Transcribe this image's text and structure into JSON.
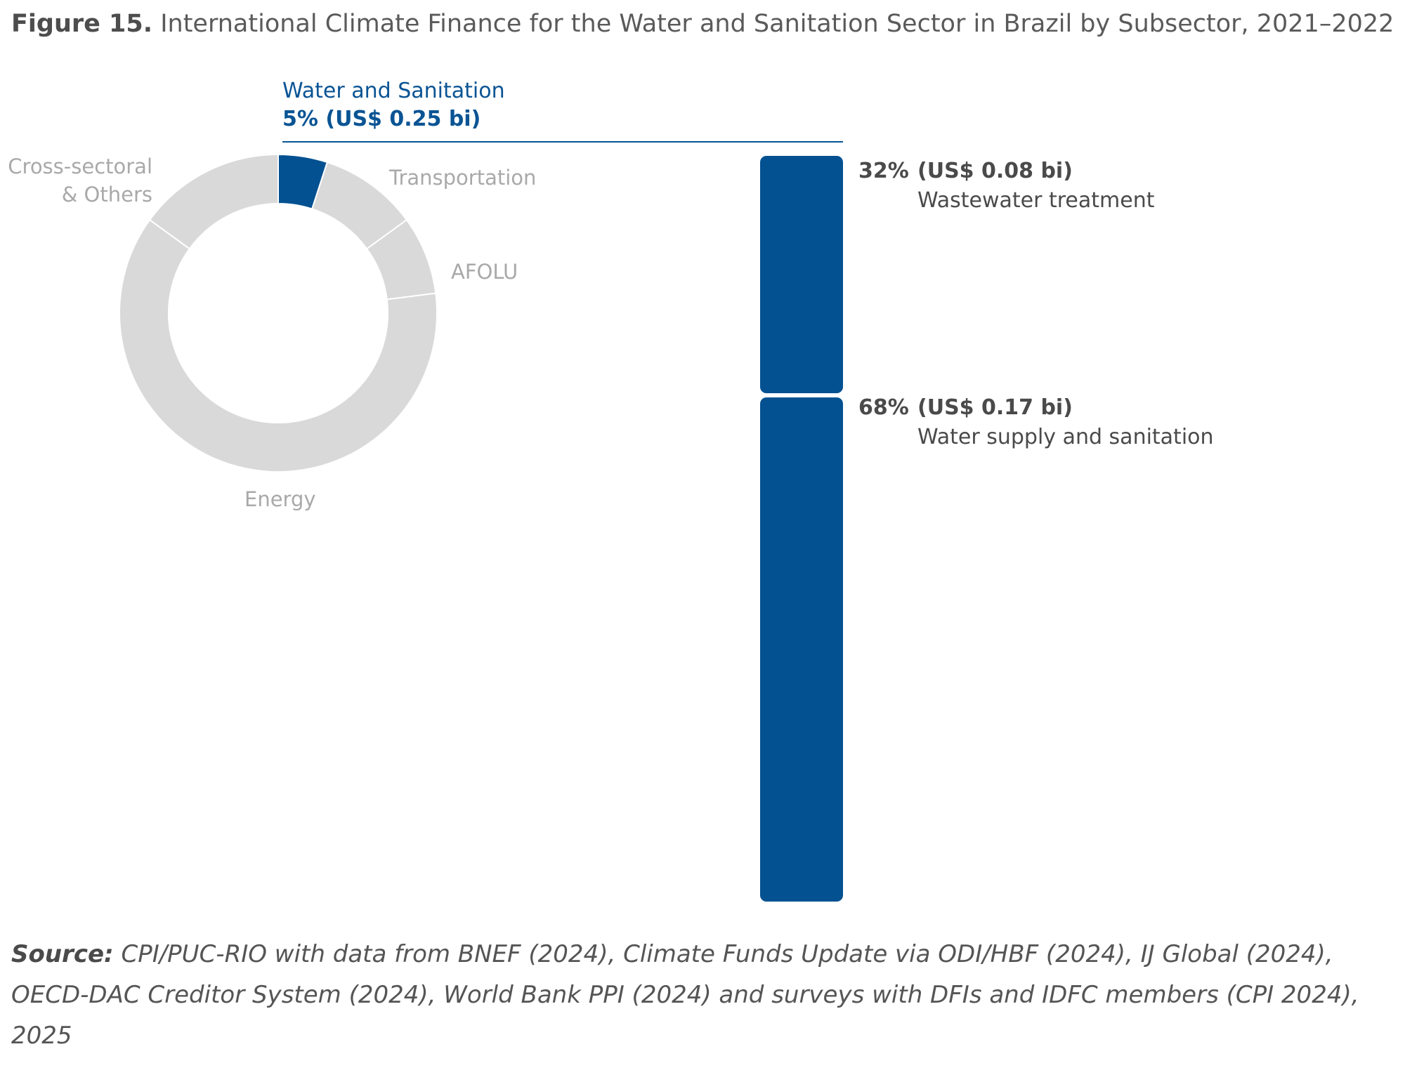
{
  "figure": {
    "label": "Figure 15.",
    "title": "International Climate Finance for the Water and Sanitation Sector in Brazil by Subsector, 2021–2022"
  },
  "colors": {
    "highlight": "#035191",
    "muted": "#d9d9d9",
    "muted_text": "#a9a9a9",
    "callout_text": "#0a5494"
  },
  "chart_data": [
    {
      "type": "pie",
      "variant": "donut",
      "slices": [
        {
          "label": "Water and Sanitation",
          "share_pct": 5,
          "highlight": true
        },
        {
          "label": "Transportation",
          "share_pct": 10
        },
        {
          "label": "AFOLU",
          "share_pct": 8
        },
        {
          "label": "Energy",
          "share_pct": 62
        },
        {
          "label": "Cross-sectoral & Others",
          "share_pct": 15
        }
      ],
      "labels": {
        "cross_line1": "Cross-sectoral",
        "cross_line2": "& Others",
        "transportation": "Transportation",
        "afolu": "AFOLU",
        "energy": "Energy"
      },
      "callout": {
        "name": "Water and Sanitation",
        "value": "5% (US$ 0.25 bi)"
      }
    },
    {
      "type": "bar",
      "variant": "stacked-100",
      "series": [
        {
          "name": "Wastewater treatment",
          "share_pct": 32,
          "value_label": "(US$ 0.08 bi)",
          "pct_label": "32%"
        },
        {
          "name": "Water supply and sanitation",
          "share_pct": 68,
          "value_label": "(US$ 0.17 bi)",
          "pct_label": "68%"
        }
      ]
    }
  ],
  "source": {
    "label": "Source:",
    "text": " CPI/PUC-RIO with data from BNEF (2024), Climate Funds Update via ODI/HBF (2024), IJ Global (2024), OECD-DAC Creditor System (2024), World Bank PPI (2024) and surveys with DFIs and IDFC members (CPI 2024), 2025"
  }
}
